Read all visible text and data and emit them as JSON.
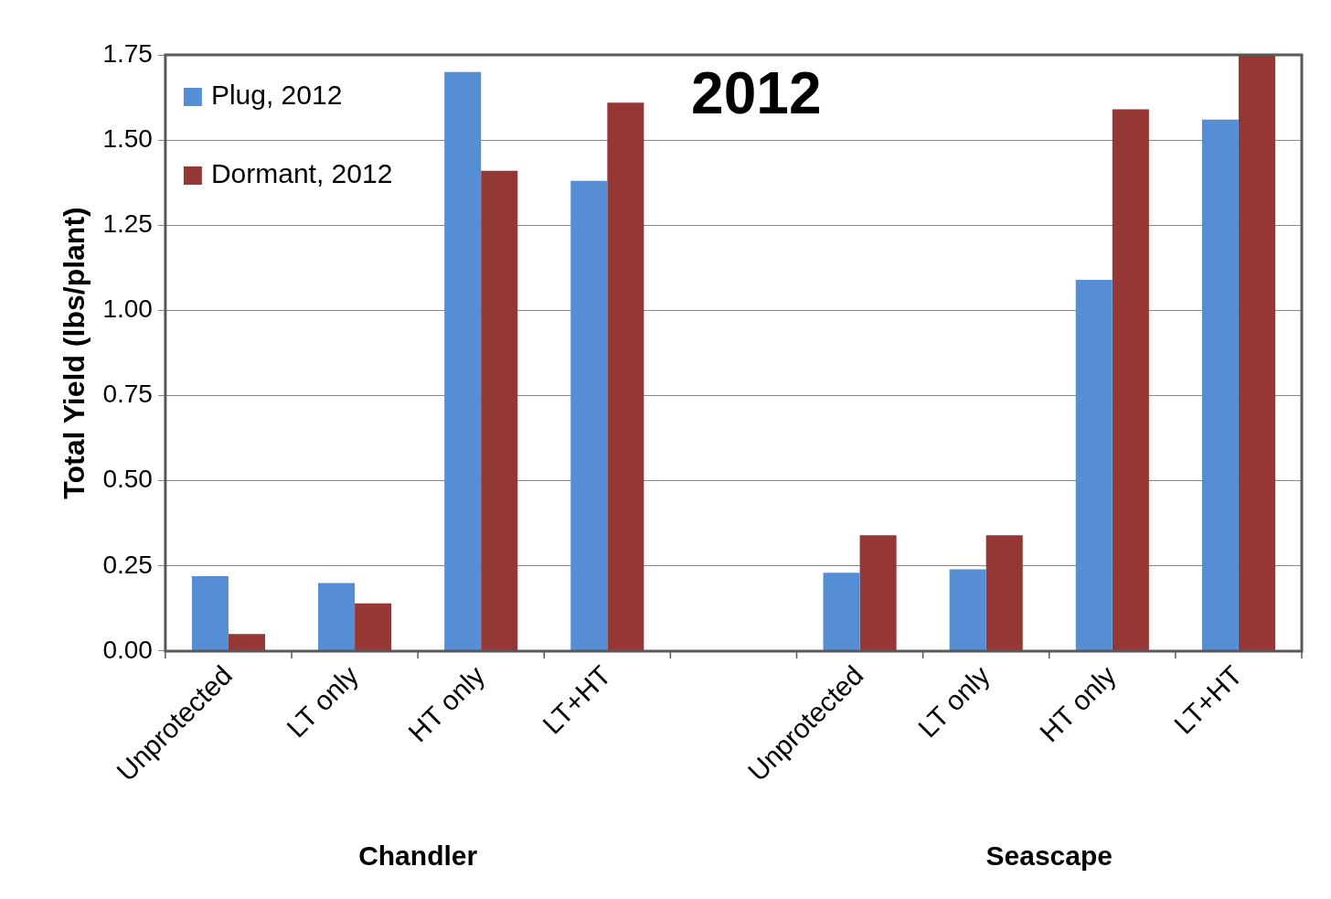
{
  "chart_data": {
    "type": "bar",
    "title": "2012",
    "ylabel": "Total Yield (lbs/plant)",
    "categories": [
      "Unprotected",
      "LT only",
      "HT only",
      "LT+HT",
      null,
      "Unprotected",
      "LT only",
      "HT only",
      "LT+HT"
    ],
    "series": [
      {
        "name": "Plug, 2012",
        "color": "#558ed5",
        "values": [
          0.22,
          0.2,
          1.7,
          1.38,
          null,
          0.23,
          0.24,
          1.09,
          1.56
        ]
      },
      {
        "name": "Dormant, 2012",
        "color": "#953735",
        "values": [
          0.05,
          0.14,
          1.41,
          1.61,
          null,
          0.34,
          0.34,
          1.59,
          1.75
        ]
      }
    ],
    "ylim": [
      0,
      1.75
    ],
    "yticks": [
      {
        "value": 0,
        "label": "0.00"
      },
      {
        "value": 0.25,
        "label": "0.25"
      },
      {
        "value": 0.5,
        "label": "0.50"
      },
      {
        "value": 0.75,
        "label": "0.75"
      },
      {
        "value": 1,
        "label": "1.00"
      },
      {
        "value": 1.25,
        "label": "1.25"
      },
      {
        "value": 1.5,
        "label": "1.50"
      },
      {
        "value": 1.75,
        "label": "1.75"
      }
    ],
    "grid": "y",
    "legend": "top left",
    "annotations": [
      "Chandler",
      "Seascape"
    ]
  }
}
